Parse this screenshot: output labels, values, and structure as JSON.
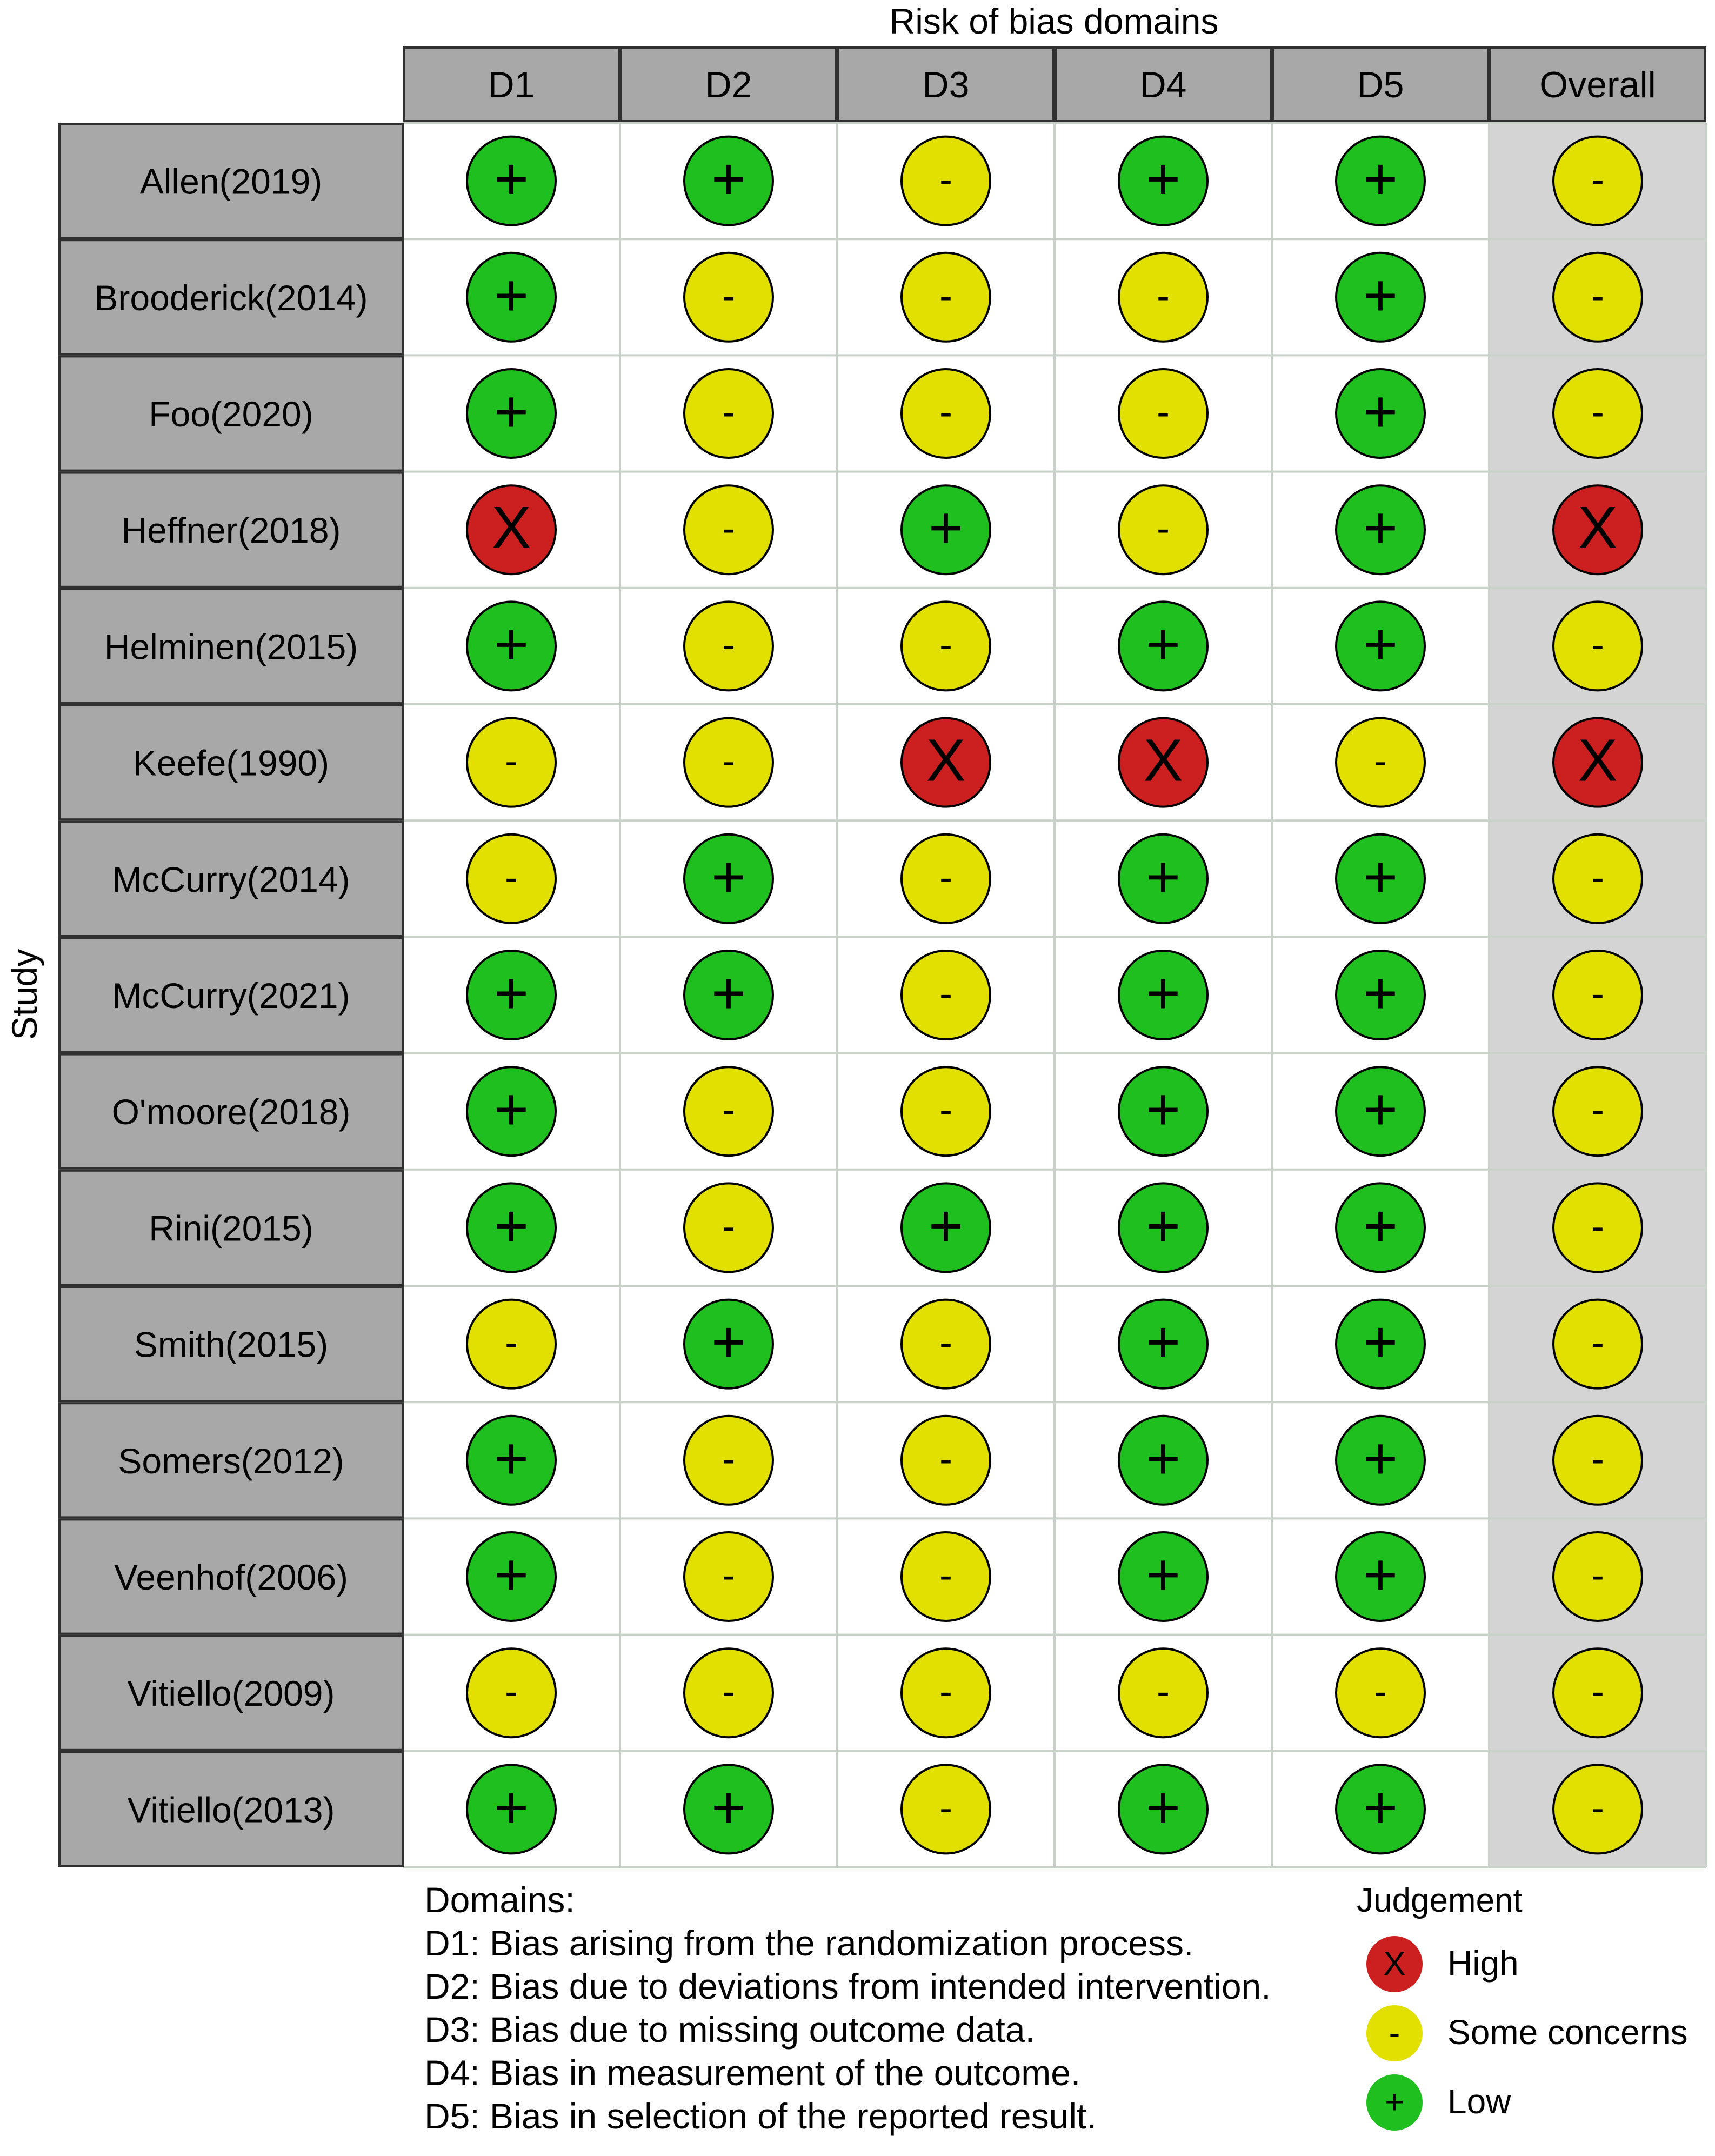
{
  "chart_data": {
    "type": "table",
    "title": "Risk of bias domains",
    "ylabel": "Study",
    "columns": [
      "D1",
      "D2",
      "D3",
      "D4",
      "D5",
      "Overall"
    ],
    "studies": [
      {
        "name": "Allen(2019)",
        "judgements": [
          "+",
          "+",
          "-",
          "+",
          "+",
          "-"
        ]
      },
      {
        "name": "Brooderick(2014)",
        "judgements": [
          "+",
          "-",
          "-",
          "-",
          "+",
          "-"
        ]
      },
      {
        "name": "Foo(2020)",
        "judgements": [
          "+",
          "-",
          "-",
          "-",
          "+",
          "-"
        ]
      },
      {
        "name": "Heffner(2018)",
        "judgements": [
          "X",
          "-",
          "+",
          "-",
          "+",
          "X"
        ]
      },
      {
        "name": "Helminen(2015)",
        "judgements": [
          "+",
          "-",
          "-",
          "+",
          "+",
          "-"
        ]
      },
      {
        "name": "Keefe(1990)",
        "judgements": [
          "-",
          "-",
          "X",
          "X",
          "-",
          "X"
        ]
      },
      {
        "name": "McCurry(2014)",
        "judgements": [
          "-",
          "+",
          "-",
          "+",
          "+",
          "-"
        ]
      },
      {
        "name": "McCurry(2021)",
        "judgements": [
          "+",
          "+",
          "-",
          "+",
          "+",
          "-"
        ]
      },
      {
        "name": "O'moore(2018)",
        "judgements": [
          "+",
          "-",
          "-",
          "+",
          "+",
          "-"
        ]
      },
      {
        "name": "Rini(2015)",
        "judgements": [
          "+",
          "-",
          "+",
          "+",
          "+",
          "-"
        ]
      },
      {
        "name": "Smith(2015)",
        "judgements": [
          "-",
          "+",
          "-",
          "+",
          "+",
          "-"
        ]
      },
      {
        "name": "Somers(2012)",
        "judgements": [
          "+",
          "-",
          "-",
          "+",
          "+",
          "-"
        ]
      },
      {
        "name": "Veenhof(2006)",
        "judgements": [
          "+",
          "-",
          "-",
          "+",
          "+",
          "-"
        ]
      },
      {
        "name": "Vitiello(2009)",
        "judgements": [
          "-",
          "-",
          "-",
          "-",
          "-",
          "-"
        ]
      },
      {
        "name": "Vitiello(2013)",
        "judgements": [
          "+",
          "+",
          "-",
          "+",
          "+",
          "-"
        ]
      }
    ],
    "domains_legend": {
      "heading": "Domains:",
      "items": [
        "D1: Bias arising from the randomization process.",
        "D2: Bias due to deviations from intended intervention.",
        "D3: Bias due to missing outcome data.",
        "D4: Bias in measurement of the outcome.",
        "D5: Bias in selection of the reported result."
      ]
    },
    "judgement_legend": {
      "title": "Judgement",
      "items": [
        {
          "symbol": "X",
          "label": "High",
          "color": "#cc1f1f"
        },
        {
          "symbol": "-",
          "label": "Some concerns",
          "color": "#e2e000"
        },
        {
          "symbol": "+",
          "label": "Low",
          "color": "#1fbf1f"
        }
      ]
    }
  }
}
